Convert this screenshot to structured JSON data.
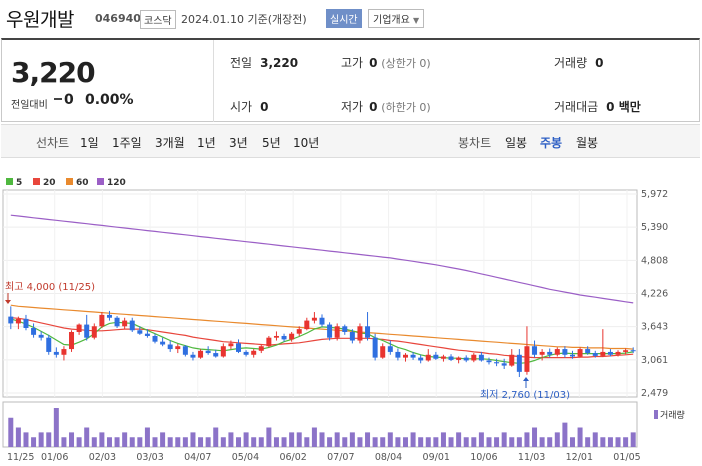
{
  "header": {
    "name": "우원개발",
    "code": "046940",
    "market": "코스닥",
    "date_text": "2024.01.10 기준(개장전)",
    "realtime_label": "실시간",
    "info_label": "기업개요"
  },
  "quote": {
    "price": "3,220",
    "change_label": "전일대비",
    "change_value": "0",
    "change_pct": "0.00%",
    "prev_label": "전일",
    "prev_value": "3,220",
    "high_label": "고가",
    "high_value": "0",
    "high_sub": "(상한가 0)",
    "volume_label": "거래량",
    "volume_value": "0",
    "open_label": "시가",
    "open_value": "0",
    "low_label": "저가",
    "low_value": "0",
    "low_sub": "(하한가 0)",
    "amount_label": "거래대금",
    "amount_value": "0 백만"
  },
  "periods": {
    "line_label": "선차트",
    "line_items": [
      "1일",
      "1주일",
      "3개월",
      "1년",
      "3년",
      "5년",
      "10년"
    ],
    "candle_label": "봉차트",
    "candle_items": [
      "일봉",
      "주봉",
      "월봉"
    ],
    "active_candle": "주봉"
  },
  "colors": {
    "up": "#e8342f",
    "down": "#2f6fe0",
    "ma5": "#4fb83f",
    "ma20": "#e8463c",
    "ma60": "#e98a2e",
    "ma120": "#9b5fc6",
    "volume": "#8c73c8"
  },
  "chart_data": {
    "type": "candlestick",
    "y_ticks": [
      "5,972",
      "5,390",
      "4,808",
      "4,226",
      "3,643",
      "3,061",
      "2,479"
    ],
    "ylim": [
      2479,
      5972
    ],
    "x_ticks": [
      "11/25",
      "01/06",
      "02/03",
      "03/03",
      "04/07",
      "05/04",
      "06/02",
      "07/07",
      "08/04",
      "09/01",
      "10/06",
      "11/03",
      "12/01",
      "01/05"
    ],
    "legend": [
      {
        "name": "5",
        "color": "#4fb83f"
      },
      {
        "name": "20",
        "color": "#e8463c"
      },
      {
        "name": "60",
        "color": "#e98a2e"
      },
      {
        "name": "120",
        "color": "#9b5fc6"
      }
    ],
    "annotations": {
      "high_text": "최고 4,000 (11/25)",
      "low_text": "최저 2,760 (11/03)"
    },
    "volume_label": "거래량",
    "candles": [
      [
        3820,
        4000,
        3600,
        3700
      ],
      [
        3700,
        3820,
        3600,
        3780
      ],
      [
        3780,
        3850,
        3580,
        3620
      ],
      [
        3620,
        3700,
        3450,
        3500
      ],
      [
        3500,
        3560,
        3400,
        3450
      ],
      [
        3450,
        3500,
        3150,
        3200
      ],
      [
        3200,
        3280,
        3100,
        3150
      ],
      [
        3150,
        3300,
        3050,
        3250
      ],
      [
        3250,
        3580,
        3200,
        3550
      ],
      [
        3550,
        3700,
        3500,
        3680
      ],
      [
        3680,
        3850,
        3400,
        3450
      ],
      [
        3450,
        3700,
        3420,
        3650
      ],
      [
        3650,
        3900,
        3620,
        3850
      ],
      [
        3850,
        3920,
        3750,
        3800
      ],
      [
        3800,
        3830,
        3620,
        3650
      ],
      [
        3650,
        3800,
        3600,
        3750
      ],
      [
        3750,
        3800,
        3550,
        3580
      ],
      [
        3580,
        3650,
        3500,
        3520
      ],
      [
        3520,
        3600,
        3450,
        3480
      ],
      [
        3480,
        3520,
        3350,
        3380
      ],
      [
        3380,
        3450,
        3300,
        3330
      ],
      [
        3330,
        3400,
        3200,
        3250
      ],
      [
        3250,
        3340,
        3180,
        3300
      ],
      [
        3300,
        3320,
        3120,
        3150
      ],
      [
        3150,
        3200,
        3050,
        3100
      ],
      [
        3100,
        3250,
        3080,
        3220
      ],
      [
        3220,
        3300,
        3150,
        3180
      ],
      [
        3180,
        3240,
        3100,
        3120
      ],
      [
        3120,
        3350,
        3100,
        3300
      ],
      [
        3300,
        3400,
        3250,
        3350
      ],
      [
        3350,
        3420,
        3180,
        3200
      ],
      [
        3200,
        3230,
        3120,
        3150
      ],
      [
        3150,
        3250,
        3100,
        3220
      ],
      [
        3220,
        3330,
        3180,
        3300
      ],
      [
        3300,
        3480,
        3280,
        3450
      ],
      [
        3450,
        3560,
        3400,
        3480
      ],
      [
        3480,
        3520,
        3380,
        3420
      ],
      [
        3420,
        3550,
        3380,
        3520
      ],
      [
        3520,
        3650,
        3480,
        3600
      ],
      [
        3600,
        3800,
        3580,
        3750
      ],
      [
        3750,
        3900,
        3700,
        3800
      ],
      [
        3800,
        3860,
        3640,
        3680
      ],
      [
        3680,
        3720,
        3400,
        3450
      ],
      [
        3450,
        3700,
        3400,
        3650
      ],
      [
        3650,
        3680,
        3500,
        3550
      ],
      [
        3550,
        3600,
        3350,
        3400
      ],
      [
        3400,
        3700,
        3350,
        3650
      ],
      [
        3650,
        3900,
        3400,
        3450
      ],
      [
        3450,
        3520,
        3050,
        3100
      ],
      [
        3100,
        3350,
        3080,
        3300
      ],
      [
        3300,
        3400,
        3150,
        3200
      ],
      [
        3200,
        3260,
        3050,
        3100
      ],
      [
        3100,
        3180,
        3030,
        3150
      ],
      [
        3150,
        3200,
        3060,
        3100
      ],
      [
        3100,
        3150,
        3000,
        3050
      ],
      [
        3050,
        3250,
        3030,
        3150
      ],
      [
        3150,
        3200,
        3060,
        3080
      ],
      [
        3080,
        3150,
        3030,
        3120
      ],
      [
        3120,
        3160,
        3040,
        3060
      ],
      [
        3060,
        3120,
        3000,
        3100
      ],
      [
        3100,
        3140,
        3020,
        3050
      ],
      [
        3050,
        3180,
        3020,
        3150
      ],
      [
        3150,
        3200,
        3030,
        3050
      ],
      [
        3050,
        3100,
        2980,
        3020
      ],
      [
        3020,
        3080,
        2950,
        3000
      ],
      [
        3000,
        3080,
        2900,
        2960
      ],
      [
        2960,
        3250,
        2940,
        3150
      ],
      [
        3150,
        3250,
        2760,
        2850
      ],
      [
        2850,
        3650,
        2800,
        3300
      ],
      [
        3300,
        3400,
        3100,
        3150
      ],
      [
        3150,
        3250,
        3050,
        3200
      ],
      [
        3200,
        3260,
        3100,
        3150
      ],
      [
        3150,
        3280,
        3120,
        3250
      ],
      [
        3250,
        3300,
        3100,
        3150
      ],
      [
        3150,
        3220,
        3080,
        3120
      ],
      [
        3120,
        3280,
        3100,
        3250
      ],
      [
        3250,
        3300,
        3150,
        3180
      ],
      [
        3180,
        3220,
        3100,
        3130
      ],
      [
        3130,
        3600,
        3110,
        3200
      ],
      [
        3200,
        3250,
        3120,
        3150
      ],
      [
        3150,
        3230,
        3120,
        3200
      ],
      [
        3200,
        3260,
        3160,
        3230
      ],
      [
        3230,
        3280,
        3180,
        3220
      ]
    ],
    "ma5": [
      3780,
      3740,
      3690,
      3630,
      3560,
      3490,
      3410,
      3330,
      3320,
      3370,
      3430,
      3520,
      3640,
      3700,
      3720,
      3710,
      3700,
      3640,
      3580,
      3520,
      3460,
      3400,
      3350,
      3310,
      3270,
      3250,
      3240,
      3230,
      3220,
      3240,
      3260,
      3270,
      3260,
      3250,
      3280,
      3320,
      3380,
      3420,
      3470,
      3530,
      3600,
      3640,
      3630,
      3620,
      3600,
      3570,
      3530,
      3520,
      3450,
      3400,
      3340,
      3280,
      3240,
      3190,
      3150,
      3120,
      3110,
      3100,
      3090,
      3090,
      3080,
      3080,
      3080,
      3070,
      3050,
      3030,
      3010,
      3000,
      3010,
      3050,
      3100,
      3140,
      3170,
      3180,
      3170,
      3170,
      3170,
      3170,
      3170,
      3170,
      3170,
      3180,
      3200
    ],
    "ma20": [
      3800,
      3790,
      3770,
      3740,
      3710,
      3680,
      3650,
      3620,
      3600,
      3590,
      3580,
      3570,
      3570,
      3580,
      3590,
      3600,
      3600,
      3600,
      3590,
      3570,
      3550,
      3530,
      3510,
      3490,
      3460,
      3440,
      3420,
      3400,
      3380,
      3370,
      3360,
      3350,
      3340,
      3330,
      3320,
      3330,
      3340,
      3350,
      3360,
      3380,
      3400,
      3420,
      3430,
      3440,
      3440,
      3440,
      3440,
      3440,
      3430,
      3420,
      3400,
      3390,
      3370,
      3350,
      3330,
      3310,
      3290,
      3270,
      3250,
      3230,
      3220,
      3200,
      3190,
      3170,
      3160,
      3140,
      3130,
      3120,
      3110,
      3100,
      3100,
      3100,
      3100,
      3100,
      3100,
      3110,
      3110,
      3120,
      3120,
      3130,
      3140,
      3150,
      3160
    ],
    "ma60": [
      4020,
      4000,
      3990,
      3980,
      3970,
      3960,
      3950,
      3940,
      3930,
      3920,
      3910,
      3900,
      3890,
      3880,
      3870,
      3860,
      3850,
      3840,
      3830,
      3820,
      3810,
      3800,
      3790,
      3780,
      3770,
      3760,
      3750,
      3740,
      3730,
      3720,
      3710,
      3700,
      3690,
      3680,
      3670,
      3660,
      3650,
      3640,
      3630,
      3620,
      3610,
      3600,
      3590,
      3580,
      3570,
      3560,
      3550,
      3540,
      3530,
      3520,
      3510,
      3500,
      3490,
      3480,
      3470,
      3460,
      3450,
      3440,
      3430,
      3420,
      3410,
      3400,
      3390,
      3380,
      3370,
      3360,
      3350,
      3340,
      3330,
      3320,
      3310,
      3300,
      3290,
      3290,
      3280,
      3280,
      3270,
      3270,
      3270,
      3260,
      3260,
      3260,
      3250
    ],
    "ma120": [
      5600,
      5585,
      5570,
      5555,
      5540,
      5525,
      5510,
      5495,
      5480,
      5465,
      5450,
      5435,
      5420,
      5405,
      5390,
      5375,
      5360,
      5345,
      5330,
      5315,
      5300,
      5285,
      5270,
      5255,
      5240,
      5225,
      5210,
      5195,
      5180,
      5165,
      5150,
      5135,
      5120,
      5105,
      5090,
      5075,
      5060,
      5045,
      5030,
      5015,
      5000,
      4985,
      4970,
      4955,
      4940,
      4925,
      4910,
      4895,
      4880,
      4865,
      4850,
      4830,
      4810,
      4790,
      4770,
      4750,
      4730,
      4705,
      4680,
      4655,
      4630,
      4600,
      4570,
      4540,
      4510,
      4480,
      4450,
      4420,
      4390,
      4360,
      4330,
      4300,
      4275,
      4250,
      4225,
      4200,
      4180,
      4160,
      4140,
      4120,
      4100,
      4080,
      4060
    ],
    "volume": [
      6,
      4,
      3,
      2,
      3,
      3,
      8,
      2,
      3,
      2,
      4,
      2,
      3,
      2,
      2,
      3,
      2,
      2,
      4,
      2,
      3,
      2,
      2,
      2,
      3,
      2,
      2,
      4,
      2,
      3,
      2,
      3,
      2,
      2,
      4,
      2,
      2,
      3,
      3,
      2,
      4,
      3,
      2,
      3,
      2,
      3,
      2,
      3,
      2,
      2,
      3,
      2,
      2,
      3,
      2,
      2,
      2,
      3,
      2,
      3,
      2,
      2,
      3,
      2,
      2,
      3,
      2,
      2,
      3,
      4,
      2,
      2,
      3,
      5,
      2,
      4,
      2,
      3,
      2,
      2,
      2,
      2,
      3
    ]
  }
}
